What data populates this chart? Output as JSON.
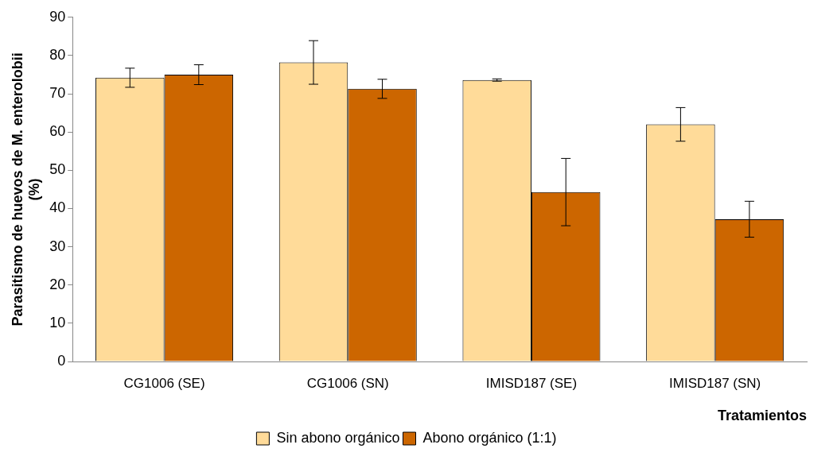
{
  "chart_data": {
    "type": "bar",
    "xlabel": "Tratamientos",
    "ylabel": "Parasitismo de huevos de M. enterolobii (%)",
    "categories": [
      "CG1006 (SE)",
      "CG1006 (SN)",
      "IMISD187 (SE)",
      "IMISD187 (SN)"
    ],
    "series": [
      {
        "name": "Sin abono orgánico",
        "color": "#ffdb99",
        "values": [
          74.2,
          78.2,
          73.6,
          62.0
        ],
        "errors": [
          2.5,
          5.7,
          0.3,
          4.4
        ]
      },
      {
        "name": "Abono orgánico (1:1)",
        "color": "#cc6600",
        "values": [
          75.0,
          71.3,
          44.3,
          37.2
        ],
        "errors": [
          2.6,
          2.5,
          8.8,
          4.7
        ]
      }
    ],
    "ylim": [
      0,
      90
    ],
    "yticks": [
      0,
      10,
      20,
      30,
      40,
      50,
      60,
      70,
      80,
      90
    ],
    "legend": "bottom"
  }
}
